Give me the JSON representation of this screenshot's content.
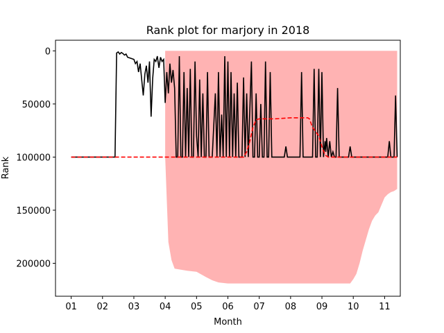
{
  "chart_data": {
    "type": "line",
    "title": "Rank plot for marjory in 2018",
    "xlabel": "Month",
    "ylabel": "Rank",
    "x_ticks": [
      "01",
      "02",
      "03",
      "04",
      "05",
      "06",
      "07",
      "08",
      "09",
      "10",
      "11"
    ],
    "y_ticks": [
      0,
      50000,
      100000,
      150000,
      200000
    ],
    "xlim": [
      -0.5,
      10.5
    ],
    "ylim": [
      231000,
      -10000
    ],
    "y_inverted": true,
    "grid": false,
    "legend": "none",
    "colors": {
      "line": "#000000",
      "mean": "#ff0000",
      "band": "#ffb3b3"
    },
    "series": [
      {
        "values": [
          [
            0.0,
            100000
          ],
          [
            1.0,
            100000
          ],
          [
            1.4,
            100000
          ],
          [
            1.45,
            2000
          ],
          [
            1.5,
            1000
          ],
          [
            1.55,
            3000
          ],
          [
            1.6,
            1500
          ],
          [
            1.65,
            2500
          ],
          [
            1.7,
            4000
          ],
          [
            1.75,
            3000
          ],
          [
            1.8,
            6000
          ],
          [
            1.9,
            7000
          ],
          [
            2.0,
            8000
          ],
          [
            2.05,
            12000
          ],
          [
            2.1,
            10000
          ],
          [
            2.15,
            20000
          ],
          [
            2.2,
            12000
          ],
          [
            2.3,
            42000
          ],
          [
            2.35,
            22000
          ],
          [
            2.4,
            14000
          ],
          [
            2.45,
            30000
          ],
          [
            2.5,
            10000
          ],
          [
            2.55,
            62000
          ],
          [
            2.6,
            26000
          ],
          [
            2.65,
            8000
          ],
          [
            2.7,
            10000
          ],
          [
            2.75,
            5000
          ],
          [
            2.8,
            16000
          ],
          [
            2.85,
            6000
          ],
          [
            2.9,
            10000
          ],
          [
            2.95,
            8000
          ],
          [
            3.0,
            49000
          ],
          [
            3.05,
            20000
          ],
          [
            3.1,
            40000
          ],
          [
            3.15,
            12000
          ],
          [
            3.2,
            30000
          ],
          [
            3.25,
            18000
          ],
          [
            3.3,
            35000
          ],
          [
            3.35,
            100000
          ],
          [
            3.4,
            100000
          ],
          [
            3.45,
            5000
          ],
          [
            3.5,
            100000
          ],
          [
            3.55,
            100000
          ],
          [
            3.6,
            20000
          ],
          [
            3.65,
            100000
          ],
          [
            3.7,
            35000
          ],
          [
            3.75,
            100000
          ],
          [
            3.8,
            17000
          ],
          [
            3.85,
            100000
          ],
          [
            3.9,
            100000
          ],
          [
            3.95,
            10000
          ],
          [
            4.0,
            80000
          ],
          [
            4.05,
            100000
          ],
          [
            4.1,
            27000
          ],
          [
            4.15,
            100000
          ],
          [
            4.2,
            40000
          ],
          [
            4.25,
            100000
          ],
          [
            4.3,
            100000
          ],
          [
            4.35,
            20000
          ],
          [
            4.4,
            100000
          ],
          [
            4.45,
            100000
          ],
          [
            4.5,
            100000
          ],
          [
            4.6,
            40000
          ],
          [
            4.65,
            100000
          ],
          [
            4.7,
            20000
          ],
          [
            4.75,
            100000
          ],
          [
            4.8,
            60000
          ],
          [
            4.85,
            100000
          ],
          [
            4.9,
            5000
          ],
          [
            4.95,
            100000
          ],
          [
            5.0,
            10000
          ],
          [
            5.05,
            100000
          ],
          [
            5.1,
            20000
          ],
          [
            5.15,
            100000
          ],
          [
            5.2,
            40000
          ],
          [
            5.25,
            100000
          ],
          [
            5.3,
            30000
          ],
          [
            5.35,
            100000
          ],
          [
            5.45,
            100000
          ],
          [
            5.5,
            25000
          ],
          [
            5.55,
            100000
          ],
          [
            5.6,
            40000
          ],
          [
            5.65,
            100000
          ],
          [
            5.75,
            10000
          ],
          [
            5.8,
            100000
          ],
          [
            5.85,
            100000
          ],
          [
            5.9,
            40000
          ],
          [
            5.95,
            100000
          ],
          [
            6.0,
            100000
          ],
          [
            6.05,
            50000
          ],
          [
            6.1,
            100000
          ],
          [
            6.15,
            100000
          ],
          [
            6.2,
            10000
          ],
          [
            6.25,
            100000
          ],
          [
            6.3,
            100000
          ],
          [
            6.35,
            20000
          ],
          [
            6.4,
            100000
          ],
          [
            6.5,
            100000
          ],
          [
            6.6,
            100000
          ],
          [
            6.7,
            100000
          ],
          [
            6.8,
            100000
          ],
          [
            6.85,
            90000
          ],
          [
            6.9,
            100000
          ],
          [
            7.0,
            100000
          ],
          [
            7.2,
            100000
          ],
          [
            7.3,
            100000
          ],
          [
            7.35,
            20000
          ],
          [
            7.4,
            100000
          ],
          [
            7.5,
            100000
          ],
          [
            7.6,
            100000
          ],
          [
            7.7,
            100000
          ],
          [
            7.75,
            17000
          ],
          [
            7.8,
            100000
          ],
          [
            7.85,
            100000
          ],
          [
            7.9,
            17000
          ],
          [
            7.95,
            100000
          ],
          [
            8.0,
            20000
          ],
          [
            8.05,
            100000
          ],
          [
            8.1,
            85000
          ],
          [
            8.12,
            95000
          ],
          [
            8.15,
            82000
          ],
          [
            8.2,
            100000
          ],
          [
            8.25,
            85000
          ],
          [
            8.3,
            100000
          ],
          [
            8.35,
            95000
          ],
          [
            8.4,
            100000
          ],
          [
            8.45,
            100000
          ],
          [
            8.5,
            35000
          ],
          [
            8.55,
            100000
          ],
          [
            8.6,
            100000
          ],
          [
            8.7,
            100000
          ],
          [
            8.75,
            100000
          ],
          [
            8.8,
            100000
          ],
          [
            8.85,
            100000
          ],
          [
            8.9,
            90000
          ],
          [
            8.95,
            100000
          ],
          [
            9.0,
            100000
          ],
          [
            9.05,
            100000
          ],
          [
            9.1,
            100000
          ],
          [
            9.15,
            100000
          ],
          [
            9.2,
            100000
          ],
          [
            9.25,
            100000
          ],
          [
            9.3,
            100000
          ],
          [
            9.35,
            100000
          ],
          [
            9.4,
            100000
          ],
          [
            9.45,
            100000
          ],
          [
            9.5,
            100000
          ],
          [
            9.55,
            100000
          ],
          [
            9.6,
            100000
          ],
          [
            9.65,
            100000
          ],
          [
            9.7,
            100000
          ],
          [
            9.75,
            100000
          ],
          [
            9.8,
            100000
          ],
          [
            9.85,
            100000
          ],
          [
            9.9,
            100000
          ],
          [
            9.95,
            100000
          ],
          [
            10.0,
            100000
          ],
          [
            10.1,
            100000
          ],
          [
            10.15,
            85000
          ],
          [
            10.2,
            100000
          ],
          [
            10.25,
            100000
          ],
          [
            10.3,
            100000
          ],
          [
            10.35,
            42000
          ],
          [
            10.4,
            100000
          ]
        ]
      },
      {
        "values": [
          [
            0.0,
            100000
          ],
          [
            4.5,
            100000
          ],
          [
            5.0,
            100000
          ],
          [
            5.5,
            100000
          ],
          [
            5.6,
            95000
          ],
          [
            5.7,
            85000
          ],
          [
            5.8,
            72000
          ],
          [
            5.9,
            65000
          ],
          [
            6.0,
            64000
          ],
          [
            6.5,
            64000
          ],
          [
            7.0,
            63000
          ],
          [
            7.5,
            63000
          ],
          [
            7.55,
            63000
          ],
          [
            7.6,
            64000
          ],
          [
            7.7,
            72000
          ],
          [
            7.8,
            76000
          ],
          [
            7.9,
            80000
          ],
          [
            8.0,
            90000
          ],
          [
            8.1,
            98000
          ],
          [
            8.2,
            100000
          ],
          [
            8.5,
            100000
          ],
          [
            9.0,
            100000
          ],
          [
            9.5,
            100000
          ],
          [
            10.0,
            100000
          ],
          [
            10.4,
            100000
          ]
        ]
      }
    ],
    "band": {
      "x": [
        3.0,
        3.05,
        3.1,
        3.2,
        3.3,
        3.5,
        3.7,
        4.0,
        4.3,
        4.5,
        4.7,
        5.0,
        5.3,
        5.5,
        5.7,
        6.0,
        6.2,
        6.4,
        6.5,
        6.6,
        6.7,
        6.8,
        7.0,
        7.2,
        7.4,
        7.5,
        7.6,
        7.7,
        7.8,
        7.9,
        8.0,
        8.1,
        8.2,
        8.3,
        8.4,
        8.5,
        8.6,
        8.7,
        8.8,
        8.9,
        9.0,
        9.1,
        9.2,
        9.3,
        9.4,
        9.5,
        9.6,
        9.7,
        9.8,
        9.9,
        10.0,
        10.1,
        10.2,
        10.3,
        10.4
      ],
      "low": [
        0,
        0,
        0,
        0,
        0,
        0,
        0,
        0,
        0,
        0,
        0,
        0,
        0,
        0,
        0,
        0,
        0,
        0,
        0,
        0,
        0,
        0,
        0,
        0,
        0,
        0,
        0,
        0,
        0,
        0,
        0,
        0,
        0,
        0,
        0,
        0,
        0,
        0,
        0,
        0,
        0,
        0,
        0,
        0,
        0,
        0,
        0,
        0,
        0,
        0,
        0,
        0,
        0,
        0,
        0
      ],
      "high": [
        100000,
        140000,
        180000,
        197000,
        205000,
        206000,
        207000,
        208000,
        213000,
        216000,
        218000,
        219000,
        219000,
        219000,
        219000,
        219000,
        219000,
        219000,
        219000,
        219000,
        219000,
        219000,
        219000,
        219000,
        219000,
        219000,
        219000,
        219000,
        219000,
        219000,
        219000,
        219000,
        219000,
        219000,
        219000,
        219000,
        219000,
        219000,
        219000,
        219000,
        215000,
        210000,
        200000,
        188000,
        178000,
        168000,
        160000,
        155000,
        152000,
        145000,
        138000,
        135000,
        133000,
        132000,
        130000
      ]
    }
  }
}
